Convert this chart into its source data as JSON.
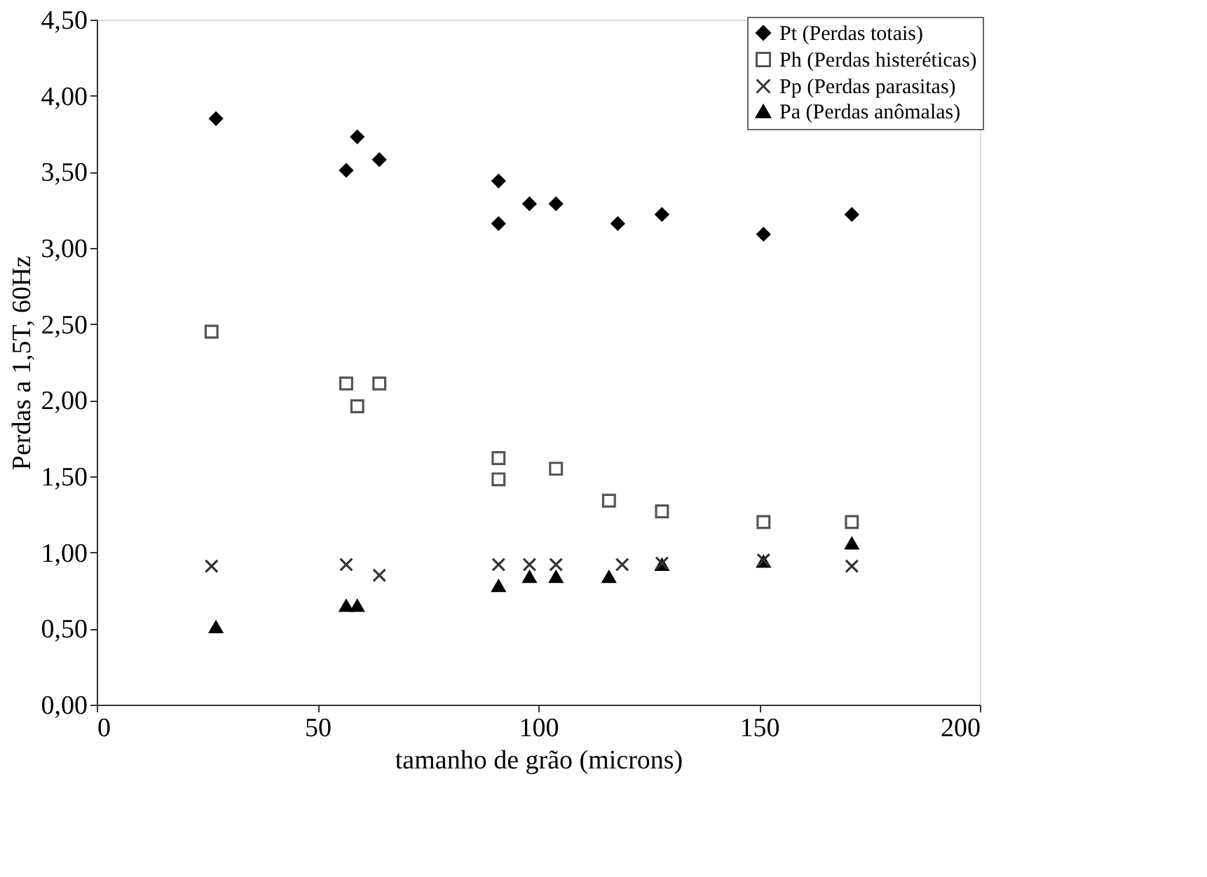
{
  "chart_data": {
    "type": "scatter",
    "xlabel": "tamanho de grão (microns)",
    "ylabel": "Perdas a 1,5T, 60Hz",
    "xlim": [
      0,
      200
    ],
    "xticks": [
      0,
      50,
      100,
      150,
      200
    ],
    "ylim": [
      0,
      4.5
    ],
    "yticks": [
      {
        "value": 0,
        "label": "0,00"
      },
      {
        "value": 0.5,
        "label": "0,50"
      },
      {
        "value": 1,
        "label": "1,00"
      },
      {
        "value": 1.5,
        "label": "1,50"
      },
      {
        "value": 2,
        "label": "2,00"
      },
      {
        "value": 2.5,
        "label": "2,50"
      },
      {
        "value": 3,
        "label": "3,00"
      },
      {
        "value": 3.5,
        "label": "3,50"
      },
      {
        "value": 4,
        "label": "4,00"
      },
      {
        "value": 4.5,
        "label": "4,50"
      }
    ],
    "grid": false,
    "legend": "top right",
    "series": [
      {
        "name": "Pt  (Perdas totais)",
        "color": "#000000",
        "marker": "diamond",
        "x": [
          27,
          56.5,
          59,
          64,
          91,
          91,
          98,
          104,
          118,
          128,
          151,
          171
        ],
        "values": [
          3.85,
          3.51,
          3.73,
          3.58,
          3.44,
          3.16,
          3.29,
          3.29,
          3.16,
          3.22,
          3.09,
          3.22
        ]
      },
      {
        "name": "Ph (Perdas histeréticas)",
        "color": "#555555",
        "marker": "square",
        "x": [
          26,
          56.5,
          59,
          64,
          91,
          91,
          104,
          116,
          128,
          151,
          171
        ],
        "values": [
          2.45,
          2.11,
          1.96,
          2.11,
          1.62,
          1.48,
          1.55,
          1.34,
          1.27,
          1.2,
          1.2
        ]
      },
      {
        "name": "Pp (Perdas parasitas)",
        "color": "#333333",
        "marker": "cross",
        "x": [
          26,
          56.5,
          64,
          91,
          98,
          104,
          119,
          128,
          151,
          171
        ],
        "values": [
          0.91,
          0.92,
          0.85,
          0.92,
          0.92,
          0.92,
          0.92,
          0.93,
          0.95,
          0.91
        ]
      },
      {
        "name": "Pa (Perdas anômalas)",
        "color": "#000000",
        "marker": "triangle",
        "x": [
          27,
          56.5,
          59,
          91,
          98,
          104,
          116,
          128,
          151,
          171
        ],
        "values": [
          0.51,
          0.65,
          0.65,
          0.78,
          0.84,
          0.84,
          0.84,
          0.92,
          0.94,
          1.06
        ]
      }
    ]
  }
}
